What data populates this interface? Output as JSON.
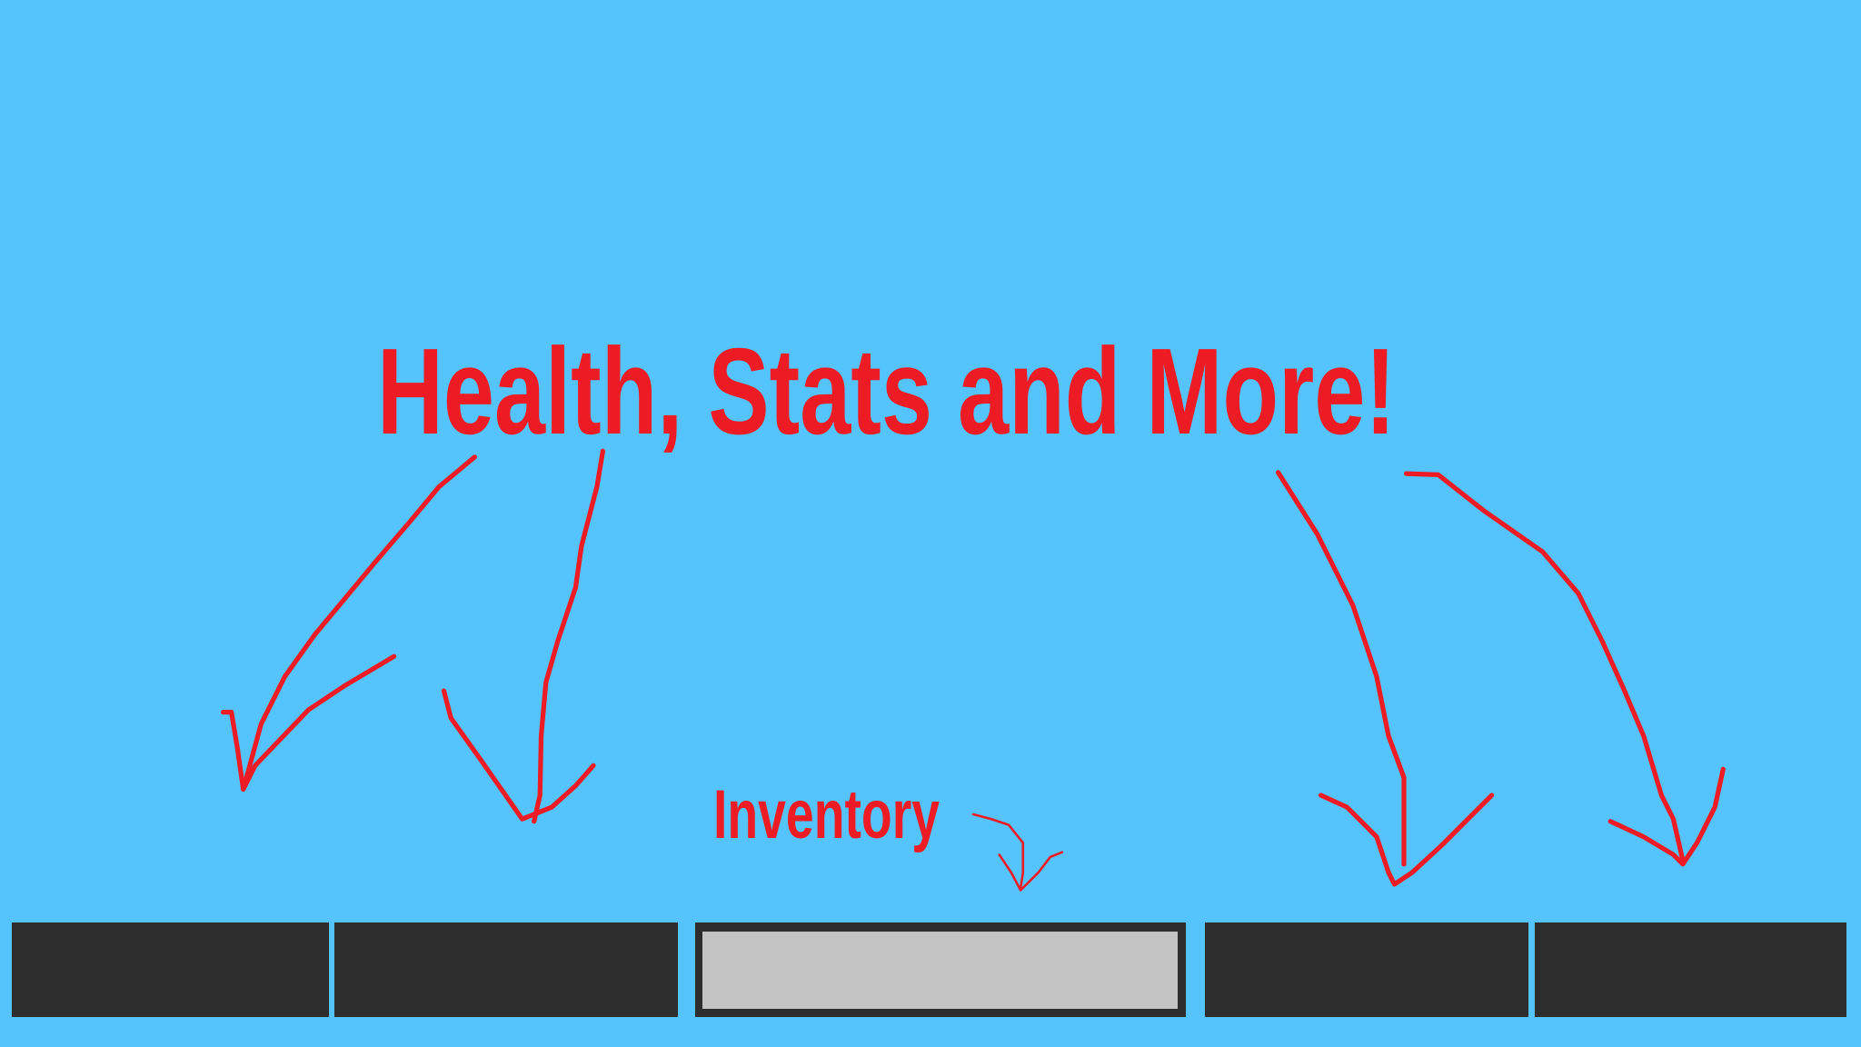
{
  "header": {
    "title": "Health, Stats and More!"
  },
  "inventory": {
    "label": "Inventory"
  }
}
